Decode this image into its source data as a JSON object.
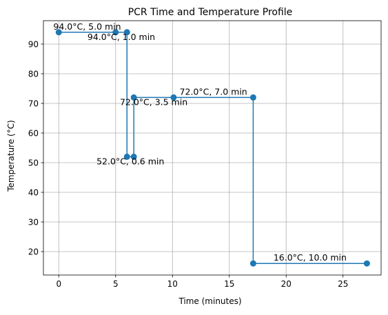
{
  "chart_data": {
    "type": "line",
    "title": "PCR Time and Temperature Profile",
    "xlabel": "Time (minutes)",
    "ylabel": "Temperature (°C)",
    "xlim": [
      -1.35,
      28.35
    ],
    "ylim": [
      12.1,
      97.9
    ],
    "xticks": [
      0,
      5,
      10,
      15,
      20,
      25
    ],
    "yticks": [
      20,
      30,
      40,
      50,
      60,
      70,
      80,
      90
    ],
    "grid": true,
    "legend": "none",
    "series": [
      {
        "color": "#1f77b4",
        "x": [
          0,
          5,
          6,
          6,
          6.6,
          6.6,
          10.1,
          17.1,
          17.1,
          27.1
        ],
        "y": [
          94,
          94,
          94,
          52,
          52,
          72,
          72,
          72,
          16,
          16
        ]
      }
    ],
    "annotations": [
      {
        "text": "94.0°C, 5.0 min",
        "x": 2.5,
        "y": 94,
        "anchor": "above"
      },
      {
        "text": "94.0°C, 1.0 min",
        "x": 5.5,
        "y": 94,
        "anchor": "below"
      },
      {
        "text": "52.0°C, 0.6 min",
        "x": 6.3,
        "y": 52,
        "anchor": "below"
      },
      {
        "text": "72.0°C, 3.5 min",
        "x": 8.35,
        "y": 72,
        "anchor": "below"
      },
      {
        "text": "72.0°C, 7.0 min",
        "x": 13.6,
        "y": 72,
        "anchor": "above"
      },
      {
        "text": "16.0°C, 10.0 min",
        "x": 22.1,
        "y": 16,
        "anchor": "above"
      }
    ]
  }
}
